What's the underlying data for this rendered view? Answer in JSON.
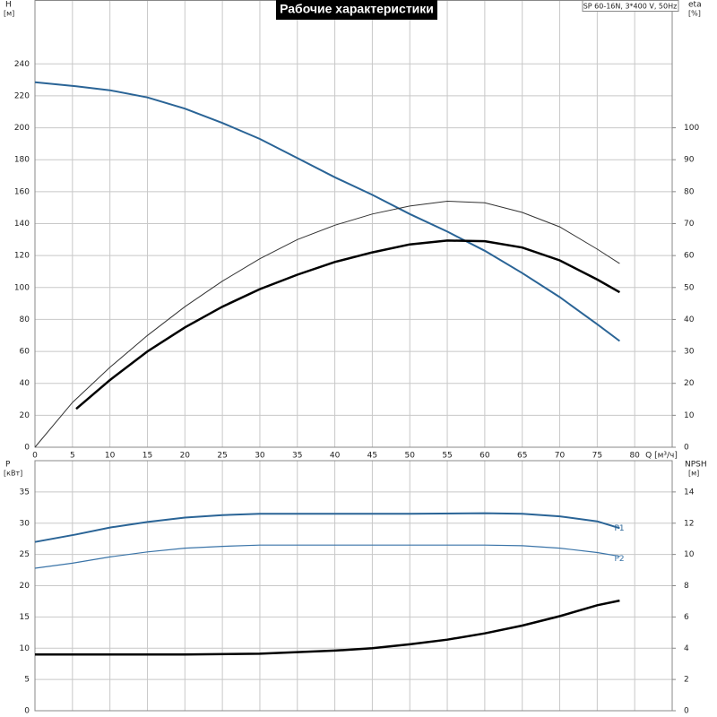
{
  "chart_data": [
    {
      "type": "line",
      "title": "Рабочие характеристики",
      "subtitle": "SP 60-16N, 3*400 V, 50Hz",
      "x_label": "Q [м³/ч]",
      "y_label": "H",
      "y_unit": "[м]",
      "y2_label": "eta",
      "y2_unit": "[%]",
      "xlim": [
        0,
        85
      ],
      "xticks": [
        0,
        5,
        10,
        15,
        20,
        25,
        30,
        35,
        40,
        45,
        50,
        55,
        60,
        65,
        70,
        75,
        80
      ],
      "ylim": [
        0,
        280
      ],
      "yticks": [
        0,
        20,
        40,
        60,
        80,
        100,
        120,
        140,
        160,
        180,
        200,
        220,
        240
      ],
      "y2lim": [
        0,
        140
      ],
      "y2ticks": [
        0,
        10,
        20,
        30,
        40,
        50,
        60,
        70,
        80,
        90,
        100
      ],
      "grid": true,
      "series": [
        {
          "color": "#2a6496",
          "x": [
            0,
            5.5,
            10,
            15,
            20,
            25,
            30,
            35,
            40,
            45,
            50,
            55,
            60,
            65,
            70,
            75,
            78
          ],
          "values": [
            228.5,
            226,
            223.5,
            219,
            212,
            203,
            193,
            181,
            169,
            158,
            146,
            135,
            123,
            109,
            94,
            77,
            66.5
          ]
        },
        {
          "color": "#333333",
          "axis": "y2",
          "x": [
            0,
            5,
            10,
            15,
            20,
            25,
            30,
            35,
            40,
            45,
            50,
            55,
            60,
            65,
            70,
            75,
            78
          ],
          "values": [
            0,
            14,
            25,
            35,
            44,
            52,
            59,
            65,
            69.5,
            73,
            75.5,
            77,
            76.5,
            73.5,
            69,
            62,
            57.5
          ]
        },
        {
          "color": "#000000",
          "axis": "y2",
          "x": [
            5.5,
            10,
            15,
            20,
            25,
            30,
            35,
            40,
            45,
            50,
            55,
            60,
            65,
            70,
            75,
            78
          ],
          "values": [
            12,
            21,
            30,
            37.5,
            44,
            49.5,
            54,
            58,
            61,
            63.5,
            64.7,
            64.5,
            62.5,
            58.5,
            52.5,
            48.5
          ]
        }
      ]
    },
    {
      "type": "line",
      "y_label": "P",
      "y_unit": "[кВт]",
      "y2_label": "NPSH",
      "y2_unit": "[м]",
      "xlim": [
        0,
        85
      ],
      "ylim": [
        0,
        40
      ],
      "yticks": [
        0,
        5,
        10,
        15,
        20,
        25,
        30,
        35
      ],
      "y2lim": [
        0,
        16
      ],
      "y2ticks": [
        0,
        2,
        4,
        6,
        8,
        10,
        12,
        14
      ],
      "grid": true,
      "series": [
        {
          "name": "P1",
          "color": "#2a6496",
          "x": [
            0,
            5.5,
            10,
            15,
            20,
            25,
            30,
            40,
            50,
            60,
            65,
            70,
            75,
            78
          ],
          "values": [
            27,
            28.2,
            29.3,
            30.2,
            30.9,
            31.3,
            31.5,
            31.5,
            31.5,
            31.6,
            31.5,
            31.1,
            30.3,
            29.2
          ]
        },
        {
          "name": "P2",
          "color": "#3a74a8",
          "x": [
            0,
            5,
            10,
            15,
            20,
            25,
            30,
            40,
            50,
            60,
            65,
            70,
            75,
            78
          ],
          "values": [
            22.8,
            23.6,
            24.6,
            25.4,
            26.0,
            26.3,
            26.5,
            26.5,
            26.5,
            26.5,
            26.4,
            26.0,
            25.3,
            24.7
          ]
        },
        {
          "color": "#000000",
          "axis": "y2",
          "x": [
            0,
            5.5,
            20,
            30,
            40,
            45,
            50,
            55,
            60,
            65,
            70,
            75,
            78
          ],
          "values": [
            3.6,
            3.6,
            3.6,
            3.65,
            3.85,
            4.0,
            4.25,
            4.55,
            4.95,
            5.45,
            6.05,
            6.75,
            7.05
          ]
        }
      ]
    }
  ]
}
